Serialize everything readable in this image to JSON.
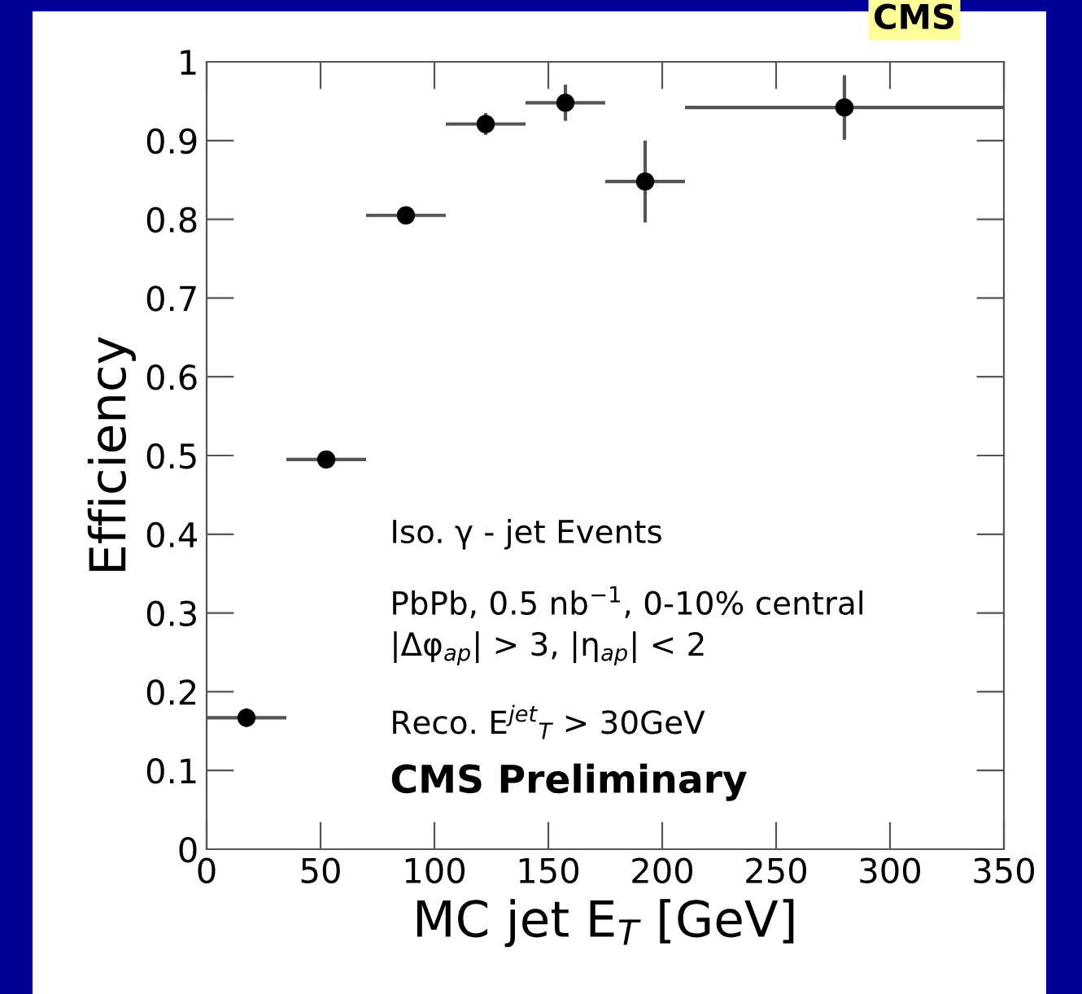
{
  "chart_data": {
    "type": "scatter",
    "xlabel": "MC jet E$_{T}$ [GeV]",
    "ylabel": "Efficiency",
    "x": [
      17.5,
      52.5,
      87.5,
      122.5,
      157.5,
      192.5,
      280
    ],
    "values": [
      0.167,
      0.495,
      0.805,
      0.921,
      0.948,
      0.848,
      0.942
    ],
    "errors": [
      0.012,
      0.01,
      0.006,
      0.014,
      0.023,
      0.052,
      0.041
    ],
    "xerrors": [
      17.5,
      17.5,
      17.5,
      17.5,
      17.5,
      17.5,
      70
    ],
    "color": "#000000",
    "marker": "circle",
    "grid": false,
    "legend": false,
    "xlim": [
      0,
      350
    ],
    "xticks": [
      0,
      50,
      100,
      150,
      200,
      250,
      300,
      350
    ],
    "ylim": [
      0,
      1
    ],
    "yticks": [
      0,
      0.1,
      0.2,
      0.3,
      0.4,
      0.5,
      0.6,
      0.7,
      0.8,
      0.9,
      1
    ],
    "annotations": [
      "CMS",
      "Iso. γ - jet Events",
      "PbPb, 0.5 nb$^{−1}$, 0-10% central",
      "|Δφ$_{ap}$| > 3, |η$_{ap}$| < 2",
      "Reco. E$^{jet}$$_{T}$ > 30GeV",
      "CMS Preliminary"
    ]
  }
}
